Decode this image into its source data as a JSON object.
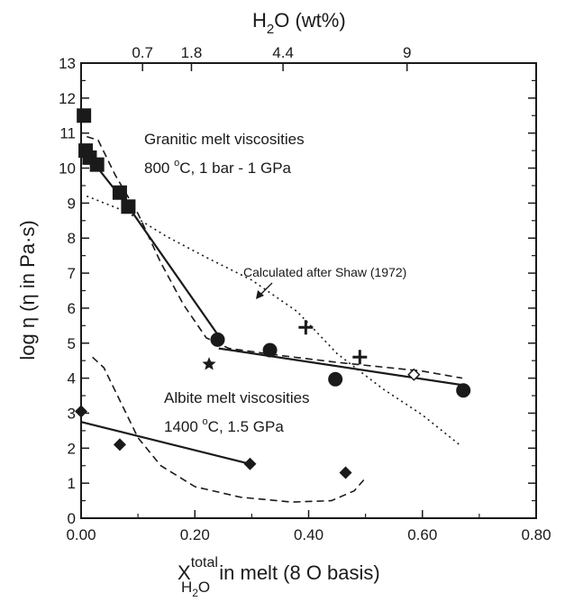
{
  "chart_data": {
    "type": "scatter",
    "title": "",
    "xlabel": {
      "prefix": "X",
      "superscript": "total",
      "subscript": "H",
      "subscript2": "2",
      "subscript3": "O",
      "suffix": " in melt (8 O basis)"
    },
    "ylabel": "log η (η in Pa·s)",
    "top_axis_title": {
      "text_before": "H",
      "sub": "2",
      "text_after": "O (wt%)"
    },
    "xlim": [
      0.0,
      0.8
    ],
    "ylim": [
      0,
      13
    ],
    "x_ticks": [
      0.0,
      0.2,
      0.4,
      0.6,
      0.8
    ],
    "x_tick_labels": [
      "0.00",
      "0.20",
      "0.40",
      "0.60",
      "0.80"
    ],
    "y_ticks": [
      0,
      1,
      2,
      3,
      4,
      5,
      6,
      7,
      8,
      9,
      10,
      11,
      12,
      13
    ],
    "y_tick_labels": [
      "0",
      "1",
      "2",
      "3",
      "4",
      "5",
      "6",
      "7",
      "8",
      "9",
      "10",
      "11",
      "12",
      "13"
    ],
    "top_ticks": [
      {
        "x": 0.108,
        "label": "0.7"
      },
      {
        "x": 0.194,
        "label": "1.8"
      },
      {
        "x": 0.355,
        "label": "4.4"
      },
      {
        "x": 0.573,
        "label": "9"
      }
    ],
    "annotations": {
      "granitic_title": "Granitic melt viscosities",
      "granitic_cond_num": "800 ",
      "granitic_cond_deg": "o",
      "granitic_cond_rest": "C, 1 bar - 1 GPa",
      "albite_title": "Albite melt viscosities",
      "albite_cond_num": "1400 ",
      "albite_cond_deg": "o",
      "albite_cond_rest": "C, 1.5 GPa",
      "shaw": "Calculated after Shaw (1972)"
    },
    "series": {
      "granitic_squares": {
        "marker": "square",
        "points": [
          [
            0.005,
            11.5
          ],
          [
            0.008,
            10.5
          ],
          [
            0.015,
            10.3
          ],
          [
            0.028,
            10.1
          ],
          [
            0.068,
            9.3
          ],
          [
            0.083,
            8.9
          ]
        ]
      },
      "granitic_circles": {
        "marker": "circle",
        "points": [
          [
            0.24,
            5.1
          ],
          [
            0.332,
            4.8
          ],
          [
            0.447,
            3.97
          ],
          [
            0.672,
            3.65
          ]
        ]
      },
      "granitic_plus": {
        "marker": "plus",
        "points": [
          [
            0.395,
            5.45
          ],
          [
            0.49,
            4.6
          ]
        ]
      },
      "granitic_star": {
        "marker": "star",
        "points": [
          [
            0.225,
            4.4
          ]
        ]
      },
      "granitic_open_diamond": {
        "marker": "open-diamond",
        "points": [
          [
            0.585,
            4.1
          ]
        ]
      },
      "albite_diamonds": {
        "marker": "diamond",
        "points": [
          [
            0.0,
            3.05
          ],
          [
            0.068,
            2.1
          ],
          [
            0.297,
            1.55
          ],
          [
            0.465,
            1.3
          ]
        ]
      }
    },
    "lines": {
      "granitic_fit_1": {
        "style": "solid",
        "points": [
          [
            0.005,
            10.5
          ],
          [
            0.083,
            8.9
          ],
          [
            0.24,
            5.25
          ]
        ]
      },
      "granitic_fit_2": {
        "style": "solid",
        "points": [
          [
            0.242,
            4.85
          ],
          [
            0.672,
            3.8
          ]
        ]
      },
      "albite_fit": {
        "style": "solid",
        "points": [
          [
            0.0,
            2.75
          ],
          [
            0.297,
            1.55
          ]
        ]
      },
      "granitic_model": {
        "style": "dashed",
        "points": [
          [
            0.01,
            10.9
          ],
          [
            0.03,
            10.8
          ],
          [
            0.06,
            9.8
          ],
          [
            0.1,
            8.7
          ],
          [
            0.14,
            7.3
          ],
          [
            0.18,
            6.1
          ],
          [
            0.22,
            5.15
          ],
          [
            0.26,
            4.85
          ],
          [
            0.35,
            4.65
          ],
          [
            0.45,
            4.45
          ],
          [
            0.6,
            4.2
          ],
          [
            0.67,
            4.0
          ]
        ]
      },
      "albite_model": {
        "style": "dashed",
        "points": [
          [
            0.02,
            4.6
          ],
          [
            0.04,
            4.3
          ],
          [
            0.07,
            3.3
          ],
          [
            0.1,
            2.3
          ],
          [
            0.14,
            1.5
          ],
          [
            0.2,
            0.9
          ],
          [
            0.28,
            0.6
          ],
          [
            0.37,
            0.46
          ],
          [
            0.44,
            0.5
          ],
          [
            0.48,
            0.78
          ],
          [
            0.5,
            1.15
          ]
        ]
      },
      "shaw_model": {
        "style": "dotted",
        "points": [
          [
            0.01,
            9.2
          ],
          [
            0.08,
            8.75
          ],
          [
            0.15,
            8.05
          ],
          [
            0.22,
            7.45
          ],
          [
            0.3,
            6.8
          ],
          [
            0.38,
            5.9
          ],
          [
            0.45,
            4.7
          ],
          [
            0.53,
            3.7
          ],
          [
            0.6,
            2.95
          ],
          [
            0.665,
            2.1
          ]
        ]
      }
    },
    "legend": "none",
    "grid": false
  }
}
